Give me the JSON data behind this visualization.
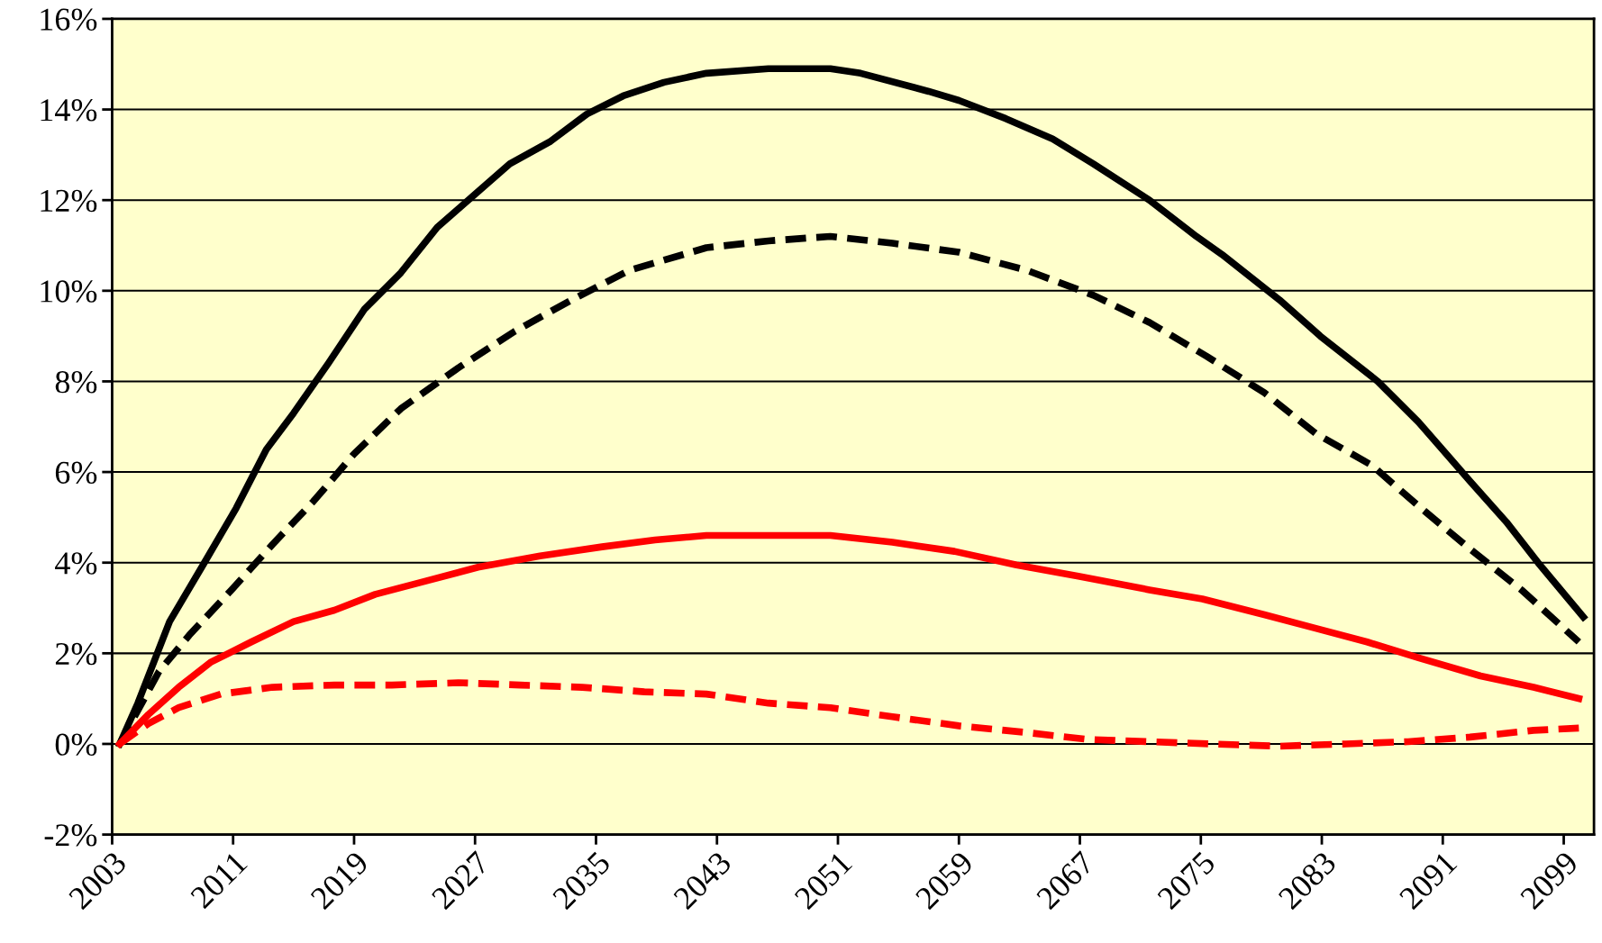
{
  "chart_data": {
    "type": "line",
    "xlim": [
      2003,
      2101
    ],
    "xticks": [
      2003,
      2011,
      2019,
      2027,
      2035,
      2043,
      2051,
      2059,
      2067,
      2075,
      2083,
      2091,
      2099
    ],
    "ylim": [
      -2,
      16
    ],
    "yticks": [
      {
        "value": -2,
        "label": "-2%"
      },
      {
        "value": 0,
        "label": "0%"
      },
      {
        "value": 2,
        "label": "2%"
      },
      {
        "value": 4,
        "label": "4%"
      },
      {
        "value": 6,
        "label": "6%"
      },
      {
        "value": 8,
        "label": "8%"
      },
      {
        "value": 10,
        "label": "10%"
      },
      {
        "value": 12,
        "label": "12%"
      },
      {
        "value": 14,
        "label": "14%"
      },
      {
        "value": 16,
        "label": "16%"
      }
    ],
    "grid": "y",
    "marker": "none",
    "series": [
      {
        "color": "#000000",
        "line_style": "solid",
        "x": [
          2003.5,
          2004.7,
          2006.8,
          2009.1,
          2011.2,
          2013.2,
          2015,
          2017.3,
          2019.7,
          2022.1,
          2024.5,
          2026.9,
          2029.3,
          2032,
          2034.4,
          2036.8,
          2039.5,
          2042.3,
          2046.4,
          2050.5,
          2052.5,
          2057,
          2059,
          2062.1,
          2065.2,
          2067.9,
          2071.6,
          2074.7,
          2076.4,
          2080.2,
          2082.9,
          2086.7,
          2089.4,
          2092.8,
          2095.2,
          2097.3,
          2099.3,
          2100.3
        ],
        "values": [
          0,
          0.9,
          2.7,
          4.0,
          5.2,
          6.5,
          7.3,
          8.4,
          9.6,
          10.4,
          11.4,
          12.1,
          12.8,
          13.3,
          13.9,
          14.3,
          14.6,
          14.8,
          14.9,
          14.9,
          14.8,
          14.4,
          14.2,
          13.8,
          13.35,
          12.8,
          12.0,
          11.2,
          10.8,
          9.8,
          9.0,
          8.0,
          7.1,
          5.8,
          4.9,
          4.0,
          3.2,
          2.8
        ]
      },
      {
        "color": "#000000",
        "line_style": "dashed",
        "x": [
          2003.5,
          2006.1,
          2008.1,
          2010.9,
          2013.6,
          2016.3,
          2019,
          2022.1,
          2025.9,
          2029.6,
          2033.4,
          2037.2,
          2042.3,
          2046.4,
          2050.5,
          2054.6,
          2059,
          2063.5,
          2067.9,
          2071.6,
          2075.4,
          2079.2,
          2082.6,
          2086.3,
          2089.4,
          2092.8,
          2096.2,
          2100
        ],
        "values": [
          0,
          1.6,
          2.4,
          3.4,
          4.4,
          5.35,
          6.4,
          7.4,
          8.3,
          9.1,
          9.8,
          10.45,
          10.95,
          11.1,
          11.2,
          11.05,
          10.85,
          10.45,
          9.9,
          9.3,
          8.55,
          7.75,
          6.85,
          6.15,
          5.25,
          4.3,
          3.4,
          2.25
        ]
      },
      {
        "color": "#ff0000",
        "line_style": "solid",
        "x": [
          2003.5,
          2005.4,
          2007.4,
          2009.5,
          2012.2,
          2015,
          2017.7,
          2020.4,
          2023.8,
          2027.2,
          2031.3,
          2035.4,
          2038.9,
          2042.3,
          2050.5,
          2054.6,
          2058.7,
          2062.8,
          2066.9,
          2071.6,
          2075.1,
          2079.2,
          2082.6,
          2086,
          2089.4,
          2093.5,
          2097,
          2100
        ],
        "values": [
          0,
          0.65,
          1.25,
          1.8,
          2.25,
          2.7,
          2.95,
          3.3,
          3.6,
          3.9,
          4.15,
          4.35,
          4.5,
          4.6,
          4.6,
          4.45,
          4.25,
          3.95,
          3.7,
          3.4,
          3.2,
          2.85,
          2.55,
          2.25,
          1.9,
          1.5,
          1.25,
          1.0
        ]
      },
      {
        "color": "#ff0000",
        "line_style": "dashed",
        "x": [
          2003.5,
          2005.4,
          2007.4,
          2010.2,
          2013.6,
          2017.7,
          2021.5,
          2025.9,
          2030,
          2034.1,
          2038.2,
          2042.3,
          2046.4,
          2050.5,
          2054.6,
          2059,
          2063.5,
          2067.5,
          2071.6,
          2075.7,
          2080.2,
          2084.6,
          2088.7,
          2092.8,
          2097,
          2100
        ],
        "values": [
          0,
          0.45,
          0.8,
          1.1,
          1.25,
          1.3,
          1.3,
          1.35,
          1.3,
          1.25,
          1.15,
          1.1,
          0.9,
          0.8,
          0.6,
          0.4,
          0.25,
          0.1,
          0.05,
          0,
          -0.05,
          0,
          0.05,
          0.15,
          0.3,
          0.35
        ]
      }
    ]
  }
}
